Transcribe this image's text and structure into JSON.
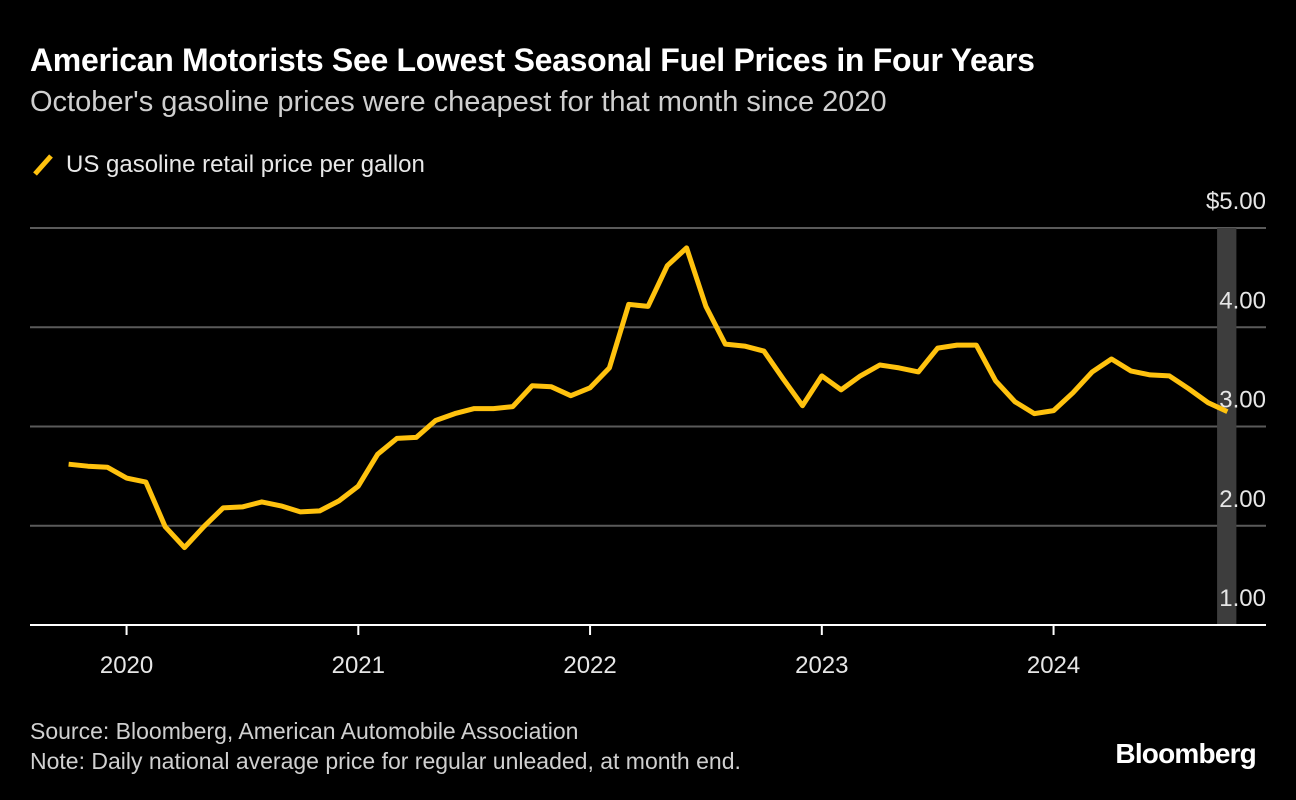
{
  "header": {
    "title": "American Motorists See Lowest Seasonal Fuel Prices in Four Years",
    "subtitle": "October's gasoline prices were cheapest for that month since 2020"
  },
  "footer": {
    "source": "Source: Bloomberg, American Automobile Association",
    "note": "Note: Daily national average price for regular unleaded, at month end.",
    "logo": "Bloomberg"
  },
  "colors": {
    "background": "#000000",
    "line": "#FFC20E",
    "grid": "#5a5a5a",
    "highlight_band": "#3d3d3d",
    "axis": "#ffffff"
  },
  "chart_data": {
    "type": "line",
    "title": "American Motorists See Lowest Seasonal Fuel Prices in Four Years",
    "subtitle": "October's gasoline prices were cheapest for that month since 2020",
    "series": [
      {
        "name": "US gasoline retail price per gallon",
        "x": [
          "2019-10",
          "2019-11",
          "2019-12",
          "2020-01",
          "2020-02",
          "2020-03",
          "2020-04",
          "2020-05",
          "2020-06",
          "2020-07",
          "2020-08",
          "2020-09",
          "2020-10",
          "2020-11",
          "2020-12",
          "2021-01",
          "2021-02",
          "2021-03",
          "2021-04",
          "2021-05",
          "2021-06",
          "2021-07",
          "2021-08",
          "2021-09",
          "2021-10",
          "2021-11",
          "2021-12",
          "2022-01",
          "2022-02",
          "2022-03",
          "2022-04",
          "2022-05",
          "2022-06",
          "2022-07",
          "2022-08",
          "2022-09",
          "2022-10",
          "2022-11",
          "2022-12",
          "2023-01",
          "2023-02",
          "2023-03",
          "2023-04",
          "2023-05",
          "2023-06",
          "2023-07",
          "2023-08",
          "2023-09",
          "2023-10",
          "2023-11",
          "2023-12",
          "2024-01",
          "2024-02",
          "2024-03",
          "2024-04",
          "2024-05",
          "2024-06",
          "2024-07",
          "2024-08",
          "2024-09",
          "2024-10"
        ],
        "values": [
          2.62,
          2.6,
          2.59,
          2.48,
          2.44,
          1.99,
          1.78,
          1.99,
          2.18,
          2.19,
          2.24,
          2.2,
          2.14,
          2.15,
          2.25,
          2.4,
          2.72,
          2.88,
          2.89,
          3.06,
          3.13,
          3.18,
          3.18,
          3.2,
          3.41,
          3.4,
          3.31,
          3.39,
          3.59,
          4.23,
          4.21,
          4.62,
          4.8,
          4.21,
          3.83,
          3.81,
          3.76,
          3.48,
          3.21,
          3.51,
          3.37,
          3.51,
          3.62,
          3.59,
          3.55,
          3.79,
          3.82,
          3.82,
          3.46,
          3.25,
          3.13,
          3.16,
          3.34,
          3.55,
          3.68,
          3.56,
          3.52,
          3.51,
          3.38,
          3.24,
          3.15
        ]
      }
    ],
    "xticks": [
      {
        "label": "2020",
        "date": "2020-01"
      },
      {
        "label": "2021",
        "date": "2021-01"
      },
      {
        "label": "2022",
        "date": "2022-01"
      },
      {
        "label": "2023",
        "date": "2023-01"
      },
      {
        "label": "2024",
        "date": "2024-01"
      }
    ],
    "yticks": [
      {
        "label": "1.00",
        "value": 1
      },
      {
        "label": "2.00",
        "value": 2
      },
      {
        "label": "3.00",
        "value": 3
      },
      {
        "label": "4.00",
        "value": 4
      },
      {
        "label": "$5.00",
        "value": 5
      }
    ],
    "ylim": [
      1,
      5
    ],
    "xlim": [
      "2019-08",
      "2024-12"
    ],
    "highlight": {
      "start": "2024-09-15",
      "end": "2024-10-15"
    },
    "grid": true,
    "legend": "top-left"
  }
}
